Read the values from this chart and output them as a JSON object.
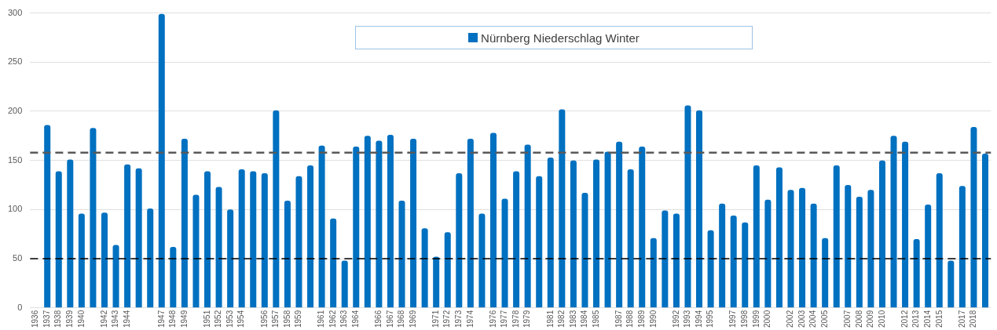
{
  "chart_data": {
    "type": "bar",
    "categories": [
      "1936",
      "1937",
      "1938",
      "1939",
      "1940",
      null,
      "1942",
      "1943",
      "1944",
      null,
      null,
      "1947",
      "1948",
      "1949",
      null,
      "1951",
      "1952",
      "1953",
      "1954",
      null,
      "1956",
      "1957",
      "1958",
      "1959",
      null,
      "1961",
      "1962",
      "1963",
      "1964",
      null,
      "1966",
      "1967",
      "1968",
      "1969",
      null,
      "1971",
      "1972",
      "1973",
      "1974",
      null,
      "1976",
      "1977",
      "1978",
      "1979",
      null,
      "1981",
      "1982",
      "1983",
      "1984",
      "1985",
      null,
      "1987",
      "1988",
      "1989",
      "1990",
      null,
      "1992",
      "1993",
      "1994",
      "1995",
      null,
      "1997",
      "1998",
      "1999",
      "2000",
      null,
      "2002",
      "2003",
      "2004",
      "2005",
      null,
      "2007",
      "2008",
      "2009",
      "2010",
      null,
      "2012",
      "2013",
      "2014",
      "2015",
      null,
      "2017",
      "2018",
      null
    ],
    "series": [
      {
        "name": "Nürnberg Niederschlag Winter",
        "color": "#0070c0",
        "values": [
          null,
          186,
          139,
          151,
          96,
          183,
          97,
          64,
          146,
          142,
          101,
          299,
          62,
          172,
          115,
          139,
          123,
          100,
          141,
          139,
          137,
          201,
          109,
          134,
          145,
          165,
          91,
          48,
          164,
          175,
          170,
          176,
          109,
          172,
          81,
          52,
          77,
          137,
          172,
          96,
          178,
          111,
          139,
          166,
          134,
          153,
          202,
          150,
          117,
          151,
          159,
          169,
          141,
          164,
          71,
          99,
          96,
          206,
          201,
          79,
          106,
          94,
          87,
          145,
          110,
          143,
          120,
          122,
          106,
          71,
          145,
          125,
          113,
          120,
          150,
          175,
          169,
          70,
          105,
          137,
          48,
          124,
          184,
          157
        ]
      }
    ],
    "ylim": [
      0,
      300
    ],
    "yticks": [
      0,
      50,
      100,
      150,
      200,
      250,
      300
    ],
    "grid": "y",
    "legend": "top",
    "ref_lines": [
      {
        "axis": "y",
        "value": 158,
        "color": "#595959",
        "line_style": "dashed"
      },
      {
        "axis": "y",
        "value": 50,
        "color": "#000000",
        "line_style": "dashed"
      }
    ]
  }
}
